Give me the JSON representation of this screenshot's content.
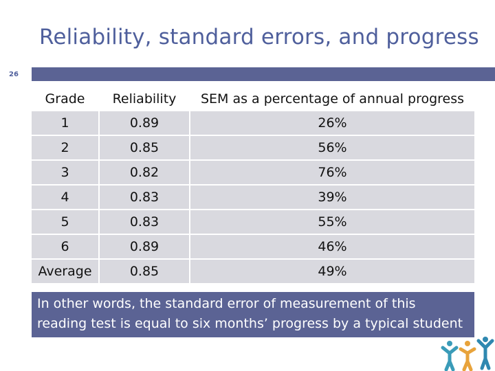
{
  "slide": {
    "title": "Reliability, standard errors, and progress",
    "number": "26"
  },
  "table": {
    "headers": [
      "Grade",
      "Reliability",
      "SEM as a percentage of annual progress"
    ],
    "rows": [
      [
        "1",
        "0.89",
        "26%"
      ],
      [
        "2",
        "0.85",
        "56%"
      ],
      [
        "3",
        "0.82",
        "76%"
      ],
      [
        "4",
        "0.83",
        "39%"
      ],
      [
        "5",
        "0.83",
        "55%"
      ],
      [
        "6",
        "0.89",
        "46%"
      ],
      [
        "Average",
        "0.85",
        "49%"
      ]
    ]
  },
  "note": "In other words, the standard error of measurement of this reading test is equal to six months’ progress by a typical student",
  "colors": {
    "accent": "#5b6394",
    "title": "#4f5f9c",
    "row_fill": "#d9d9df",
    "logo": [
      "#3a9bb8",
      "#e8a33b",
      "#2f88b0"
    ]
  },
  "icons": {
    "logo": "people-group-icon"
  }
}
